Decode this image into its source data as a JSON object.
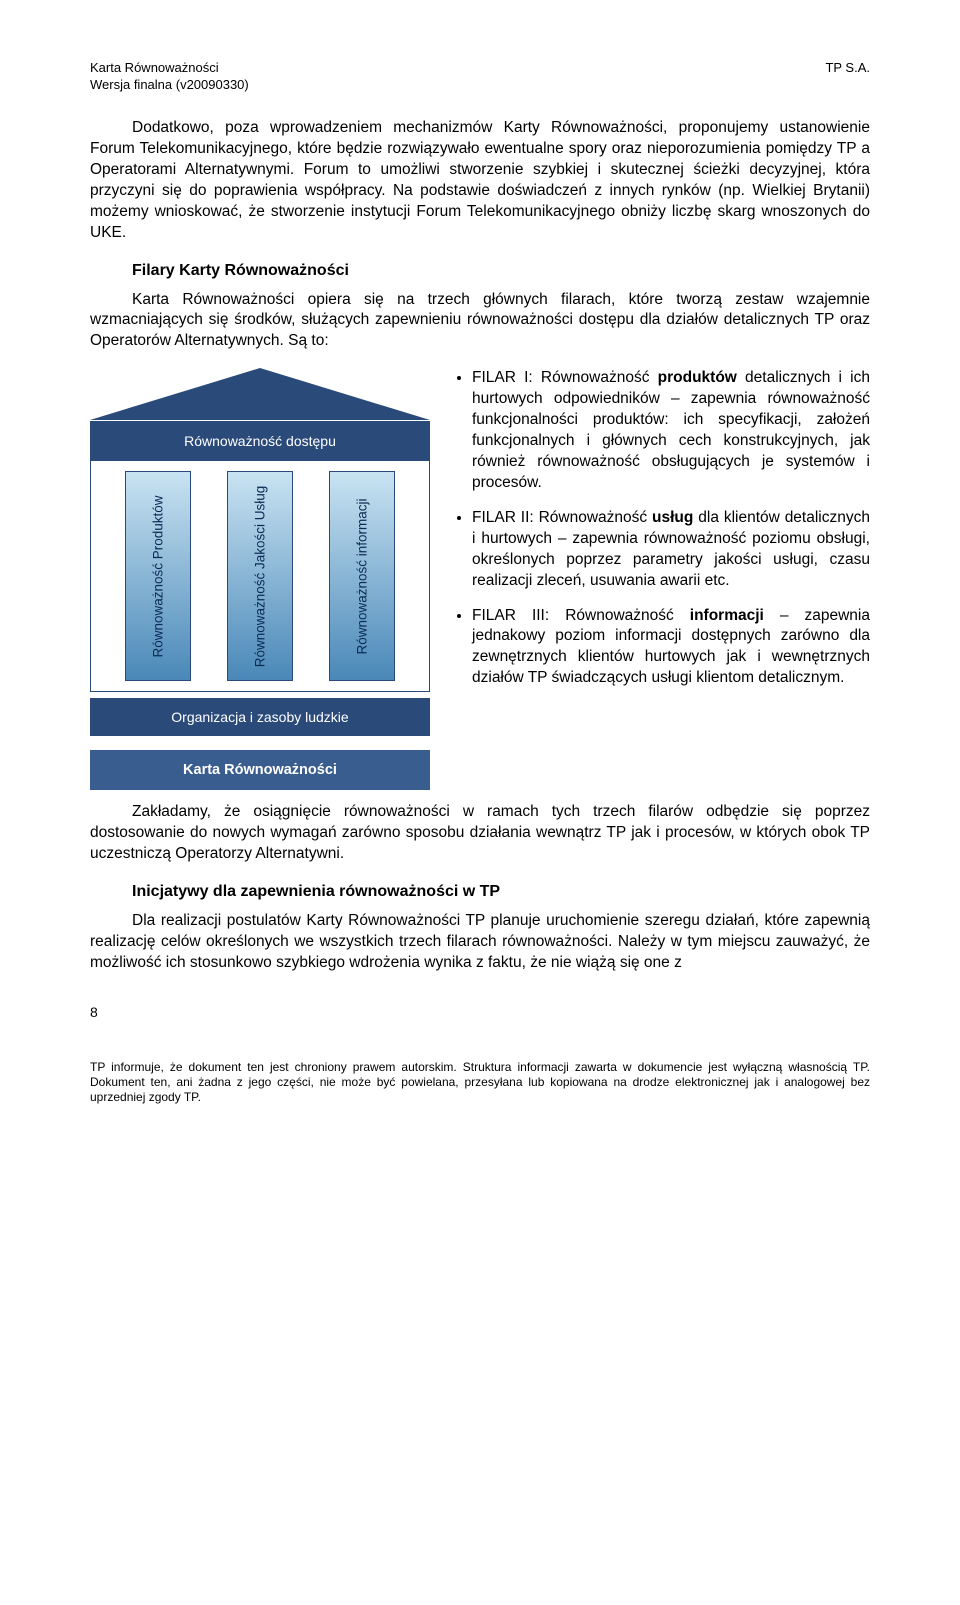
{
  "header": {
    "left": "Karta Równoważności",
    "right": "TP S.A.",
    "sub": "Wersja finalna (v20090330)"
  },
  "paragraphs": {
    "p1": "Dodatkowo, poza wprowadzeniem mechanizmów Karty Równoważności, proponujemy ustanowienie Forum Telekomunikacyjnego, które będzie rozwiązywało ewentualne spory oraz nieporozumienia pomiędzy TP a Operatorami Alternatywnymi. Forum to umożliwi stworzenie szybkiej i skutecznej ścieżki decyzyjnej, która przyczyni się do poprawienia współpracy. Na podstawie doświadczeń z innych rynków (np. Wielkiej Brytanii) możemy wnioskować, że stworzenie instytucji Forum Telekomunikacyjnego obniży liczbę skarg wnoszonych do UKE.",
    "section1": "Filary Karty Równoważności",
    "p2": "Karta Równoważności opiera się na trzech głównych filarach, które tworzą zestaw wzajemnie wzmacniających się środków, służących zapewnieniu równoważności dostępu dla działów detalicznych TP oraz Operatorów Alternatywnych. Są to:",
    "p3": "Zakładamy, że osiągnięcie równoważności w ramach tych trzech filarów odbędzie się poprzez dostosowanie do nowych wymagań zarówno sposobu działania wewnątrz TP jak i procesów, w których obok TP uczestniczą Operatorzy Alternatywni.",
    "section2": "Inicjatywy dla zapewnienia równoważności w TP",
    "p4": "Dla realizacji postulatów Karty Równoważności TP planuje uruchomienie szeregu działań, które zapewnią realizację celów określonych we wszystkich trzech filarach równoważności. Należy w tym miejscu zauważyć, że możliwość ich stosunkowo szybkiego wdrożenia wynika z faktu, że nie wiążą się one z"
  },
  "diagram": {
    "roof_color": "#2a4a7a",
    "band_bg": "#2a4a7a",
    "roof_label": "Równoważność dostępu",
    "pillar_gradient_top": "#c9e3f2",
    "pillar_gradient_bottom": "#4a88b8",
    "pillars": [
      "Równoważność Produktów",
      "Równoważność Jakości Usług",
      "Równoważność informacji"
    ],
    "base1": "Organizacja i zasoby ludzkie",
    "base2": "Karta Równoważności",
    "base2_bg": "#3a5d8f"
  },
  "bullets": {
    "b1_lead": "FILAR I: Równoważność ",
    "b1_bold": "produktów",
    "b1_rest": " detalicznych i ich hurtowych odpowiedników – zapewnia równoważność funkcjonalności produktów: ich specyfikacji, założeń funkcjonalnych i głównych cech konstrukcyjnych, jak również równoważność obsługujących je systemów i procesów.",
    "b2_lead": "FILAR II: Równoważność ",
    "b2_bold": "usług",
    "b2_rest": " dla klientów detalicznych i hurtowych – zapewnia równoważność poziomu obsługi, określonych poprzez parametry jakości usługi, czasu realizacji zleceń, usuwania awarii etc.",
    "b3_lead": "FILAR III: Równoważność ",
    "b3_bold": "informacji",
    "b3_rest": " – zapewnia jednakowy poziom informacji dostępnych zarówno dla zewnętrznych klientów hurtowych jak i wewnętrznych działów TP świadczących usługi klientom detalicznym."
  },
  "footer": {
    "pagenum": "8",
    "note": "TP informuje, że dokument ten jest chroniony prawem autorskim. Struktura informacji zawarta w dokumencie jest wyłączną własnością TP. Dokument ten, ani żadna z jego części, nie może być powielana, przesyłana lub kopiowana na drodze elektronicznej jak i analogowej bez uprzedniej zgody TP."
  }
}
